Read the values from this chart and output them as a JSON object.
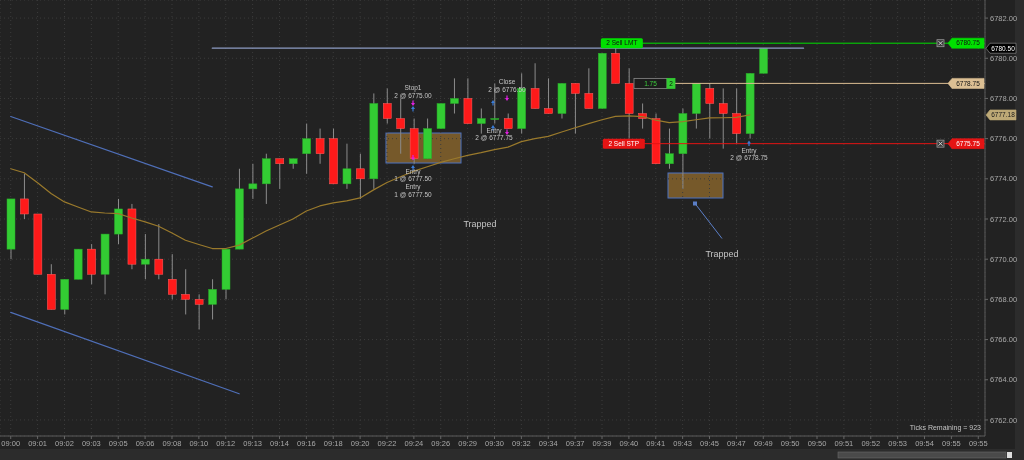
{
  "chart_data": {
    "type": "candlestick",
    "categories": [
      "09:00",
      null,
      "09:01",
      null,
      "09:02",
      null,
      "09:03",
      null,
      "09:05",
      null,
      "09:06",
      null,
      "09:08",
      null,
      "09:10",
      null,
      "09:12",
      null,
      "09:13",
      null,
      "09:14",
      null,
      "09:16",
      null,
      "09:18",
      null,
      "09:20",
      null,
      "09:22",
      null,
      "09:24",
      null,
      "09:26",
      null,
      "09:29",
      null,
      "09:30",
      null,
      "09:32",
      null,
      "09:34",
      null,
      "09:37",
      null,
      "09:39",
      null,
      "09:40",
      null,
      "09:41",
      null,
      "09:43",
      null,
      "09:45",
      null,
      "09:47",
      null,
      "09:49",
      null,
      "09:50",
      null,
      "09:50",
      null,
      "09:51",
      null,
      "09:52",
      null,
      "09:53",
      null,
      "09:54",
      null,
      "09:55",
      null,
      "09:55"
    ],
    "ohlc": [
      [
        6770.5,
        6773.0,
        6770.0,
        6773.0
      ],
      [
        6773.0,
        6774.25,
        6772.0,
        6772.25
      ],
      [
        6772.25,
        6772.25,
        6769.25,
        6769.25
      ],
      [
        6769.25,
        6769.75,
        6767.5,
        6767.5
      ],
      [
        6767.5,
        6769.0,
        6767.25,
        6769.0
      ],
      [
        6769.0,
        6770.5,
        6769.0,
        6770.5
      ],
      [
        6770.5,
        6770.75,
        6768.75,
        6769.25
      ],
      [
        6769.25,
        6771.25,
        6768.25,
        6771.25
      ],
      [
        6771.25,
        6773.0,
        6770.75,
        6772.5
      ],
      [
        6772.5,
        6772.75,
        6769.5,
        6769.75
      ],
      [
        6769.75,
        6771.25,
        6769.0,
        6770.0
      ],
      [
        6770.0,
        6771.75,
        6769.0,
        6769.25
      ],
      [
        6769.0,
        6770.25,
        6768.0,
        6768.25
      ],
      [
        6768.25,
        6769.5,
        6767.25,
        6768.0
      ],
      [
        6768.0,
        6768.25,
        6766.5,
        6767.75
      ],
      [
        6767.75,
        6769.0,
        6767.0,
        6768.5
      ],
      [
        6768.5,
        6770.5,
        6768.0,
        6770.5
      ],
      [
        6770.5,
        6774.5,
        6770.5,
        6773.5
      ],
      [
        6773.5,
        6774.75,
        6773.0,
        6773.75
      ],
      [
        6773.75,
        6775.25,
        6772.75,
        6775.0
      ],
      [
        6775.0,
        6775.0,
        6773.5,
        6774.75
      ],
      [
        6774.75,
        6775.0,
        6774.5,
        6775.0
      ],
      [
        6775.25,
        6776.75,
        6774.25,
        6776.0
      ],
      [
        6776.0,
        6776.5,
        6774.75,
        6775.25
      ],
      [
        6776.0,
        6776.5,
        6773.75,
        6773.75
      ],
      [
        6773.75,
        6775.75,
        6773.5,
        6774.5
      ],
      [
        6774.5,
        6775.25,
        6773.0,
        6774.0
      ],
      [
        6774.0,
        6778.25,
        6773.5,
        6777.75
      ],
      [
        6777.75,
        6778.5,
        6776.75,
        6777.0
      ],
      [
        6777.0,
        6778.0,
        6775.25,
        6776.5
      ],
      [
        6776.5,
        6777.0,
        6774.75,
        6775.0
      ],
      [
        6775.0,
        6777.0,
        6775.0,
        6776.5
      ],
      [
        6776.5,
        6777.75,
        6776.5,
        6777.75
      ],
      [
        6777.75,
        6779.0,
        6777.25,
        6778.0
      ],
      [
        6778.0,
        6779.0,
        6776.75,
        6776.75
      ],
      [
        6776.75,
        6777.5,
        6776.25,
        6777.0
      ],
      [
        6777.0,
        6778.75,
        6776.75,
        6777.0
      ],
      [
        6777.0,
        6777.25,
        6776.5,
        6776.5
      ],
      [
        6776.5,
        6779.25,
        6776.25,
        6778.5
      ],
      [
        6778.5,
        6779.75,
        6777.5,
        6777.5
      ],
      [
        6777.5,
        6779.0,
        6777.25,
        6777.25
      ],
      [
        6777.25,
        6778.75,
        6777.0,
        6778.75
      ],
      [
        6778.75,
        6778.75,
        6776.25,
        6778.25
      ],
      [
        6778.25,
        6779.5,
        6777.5,
        6777.5
      ],
      [
        6777.5,
        6780.25,
        6777.5,
        6780.25
      ],
      [
        6780.25,
        6780.5,
        6778.75,
        6778.75
      ],
      [
        6778.75,
        6779.5,
        6776.0,
        6777.25
      ],
      [
        6777.25,
        6777.75,
        6776.5,
        6777.0
      ],
      [
        6777.0,
        6777.25,
        6774.75,
        6774.75
      ],
      [
        6774.75,
        6776.5,
        6774.5,
        6775.25
      ],
      [
        6775.25,
        6777.5,
        6773.5,
        6777.25
      ],
      [
        6777.25,
        6778.75,
        6776.5,
        6778.75
      ],
      [
        6778.5,
        6778.75,
        6776.0,
        6777.75
      ],
      [
        6777.75,
        6778.5,
        6775.5,
        6777.25
      ],
      [
        6777.25,
        6778.5,
        6775.75,
        6776.25
      ],
      [
        6776.25,
        6779.25,
        6776.0,
        6779.25
      ],
      [
        6779.25,
        6780.5,
        6779.25,
        6780.5
      ],
      null,
      null,
      null,
      null,
      null,
      null,
      null,
      null,
      null,
      null,
      null,
      null,
      null,
      null,
      null,
      null
    ],
    "series": [
      {
        "type": "line",
        "color": "#9a7a2c",
        "values": [
          6774.5,
          6774.3,
          6773.8,
          6773.27,
          6772.85,
          6772.6,
          6772.35,
          6772.3,
          6772.27,
          6772.05,
          6771.86,
          6771.64,
          6771.3,
          6770.94,
          6770.73,
          6770.53,
          6770.53,
          6770.7,
          6771.05,
          6771.4,
          6771.7,
          6772.0,
          6772.4,
          6772.65,
          6772.8,
          6772.9,
          6773.05,
          6773.45,
          6773.82,
          6774.1,
          6774.38,
          6774.6,
          6774.82,
          6775.0,
          6775.17,
          6775.3,
          6775.45,
          6775.58,
          6775.85,
          6776.0,
          6776.11,
          6776.33,
          6776.54,
          6776.75,
          6776.94,
          6777.11,
          6777.13,
          6777.1,
          6776.92,
          6776.8,
          6776.85,
          6776.94,
          6777.03,
          6777.04,
          6777.06,
          6777.18,
          null,
          null,
          null,
          null,
          null,
          null,
          null,
          null,
          null,
          null,
          null,
          null,
          null,
          null,
          null,
          null,
          null
        ]
      },
      {
        "type": "line",
        "color": "#4f6fb8",
        "values": [
          6777.1,
          null,
          null,
          null,
          null,
          null,
          null,
          null,
          null,
          null,
          null,
          null,
          null,
          null,
          null,
          6773.6,
          null,
          null,
          null,
          null,
          null,
          null,
          null,
          null,
          null,
          null,
          null,
          null,
          null,
          null,
          null,
          null,
          null,
          null,
          null,
          null,
          null,
          null,
          null,
          null,
          null,
          null,
          null,
          null,
          null,
          null,
          null,
          null,
          null,
          null,
          null,
          null,
          null,
          null,
          null,
          null,
          null,
          null,
          null,
          null,
          null,
          null,
          null,
          null,
          null,
          null,
          null,
          null,
          null,
          null,
          null,
          null,
          null
        ]
      },
      {
        "type": "line",
        "color": "#4f6fb8",
        "values": [
          6767.35,
          null,
          null,
          null,
          null,
          null,
          null,
          null,
          null,
          null,
          null,
          null,
          null,
          null,
          null,
          null,
          null,
          6763.3,
          null,
          null,
          null,
          null,
          null,
          null,
          null,
          null,
          null,
          null,
          null,
          null,
          null,
          null,
          null,
          null,
          null,
          null,
          null,
          null,
          null,
          null,
          null,
          null,
          null,
          null,
          null,
          null,
          null,
          null,
          null,
          null,
          null,
          null,
          null,
          null,
          null,
          null,
          null,
          null,
          null,
          null,
          null,
          null,
          null,
          null,
          null,
          null,
          null,
          null,
          null,
          null,
          null,
          null,
          null
        ]
      },
      {
        "type": "line",
        "color": "#8d9cc4",
        "values": [
          null,
          null,
          null,
          null,
          null,
          null,
          null,
          null,
          null,
          null,
          null,
          null,
          null,
          null,
          null,
          6780.5,
          null,
          null,
          null,
          null,
          null,
          null,
          null,
          null,
          null,
          null,
          null,
          null,
          null,
          null,
          null,
          null,
          null,
          null,
          null,
          null,
          null,
          null,
          null,
          null,
          null,
          null,
          null,
          null,
          null,
          null,
          null,
          null,
          null,
          null,
          null,
          null,
          null,
          null,
          null,
          null,
          null,
          null,
          null,
          6780.5,
          null,
          null,
          null,
          null,
          null,
          null,
          null,
          null,
          null,
          null,
          null,
          null,
          null
        ]
      }
    ],
    "ylim": [
      6761.2,
      6782.9
    ],
    "yticks": [
      {
        "value": 6762,
        "label": "6762.00"
      },
      {
        "value": 6764,
        "label": "6764.00"
      },
      {
        "value": 6766,
        "label": "6766.00"
      },
      {
        "value": 6768,
        "label": "6768.00"
      },
      {
        "value": 6770,
        "label": "6770.00"
      },
      {
        "value": 6772,
        "label": "6772.00"
      },
      {
        "value": 6774,
        "label": "6774.00"
      },
      {
        "value": 6776,
        "label": "6776.00"
      },
      {
        "value": 6778,
        "label": "6778.00"
      },
      {
        "value": 6780,
        "label": "6780.00"
      },
      {
        "value": 6782,
        "label": "6782.00"
      }
    ],
    "grid": true,
    "marker": "none",
    "ref_lines": [
      {
        "axis": "y",
        "value": 6780.75,
        "label": "2 Sell LMT",
        "color": "#00e000"
      },
      {
        "axis": "y",
        "value": 6778.75,
        "color": "#dcbf93"
      },
      {
        "axis": "y",
        "value": 6775.75,
        "label": "2 Sell STP",
        "color": "#e51414"
      }
    ],
    "annotations": [
      "Stop1",
      "2 @ 6775.00",
      "Entry",
      "1 @ 6777.50",
      "Entry",
      "1 @ 6777.50",
      "Close",
      "2 @ 6776.50",
      "Entry",
      "2 @ 6777.75",
      "Trapped",
      "Entry",
      "2 @ 6778.75",
      "Trapped",
      "1.75",
      "2",
      "Ticks Remaining = 923",
      {
        "text": "6780.75",
        "y": 6780.75
      },
      {
        "text": "6778.75",
        "y": 6778.75
      },
      {
        "text": "6775.75",
        "y": 6775.75
      },
      {
        "text": "6777.18",
        "y": 6777.18
      },
      {
        "text": "6780.50",
        "y": 6780.5
      }
    ]
  }
}
